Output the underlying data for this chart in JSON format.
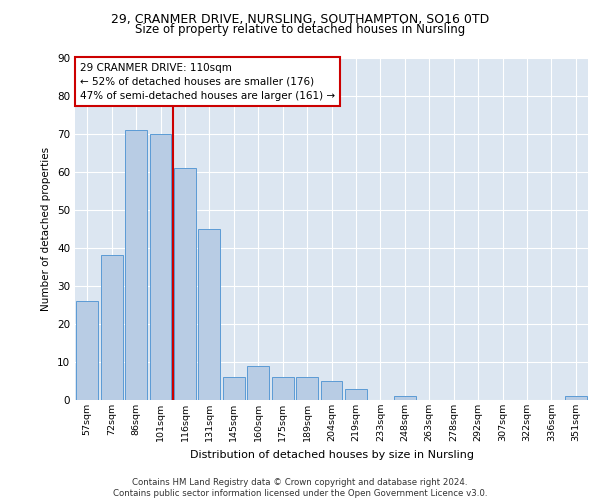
{
  "title1": "29, CRANMER DRIVE, NURSLING, SOUTHAMPTON, SO16 0TD",
  "title2": "Size of property relative to detached houses in Nursling",
  "xlabel": "Distribution of detached houses by size in Nursling",
  "ylabel": "Number of detached properties",
  "categories": [
    "57sqm",
    "72sqm",
    "86sqm",
    "101sqm",
    "116sqm",
    "131sqm",
    "145sqm",
    "160sqm",
    "175sqm",
    "189sqm",
    "204sqm",
    "219sqm",
    "233sqm",
    "248sqm",
    "263sqm",
    "278sqm",
    "292sqm",
    "307sqm",
    "322sqm",
    "336sqm",
    "351sqm"
  ],
  "values": [
    26,
    38,
    71,
    70,
    61,
    45,
    6,
    9,
    6,
    6,
    5,
    3,
    0,
    1,
    0,
    0,
    0,
    0,
    0,
    0,
    1
  ],
  "bar_color": "#b8cce4",
  "bar_edge_color": "#5b9bd5",
  "vline_color": "#cc0000",
  "annotation_text": "29 CRANMER DRIVE: 110sqm\n← 52% of detached houses are smaller (176)\n47% of semi-detached houses are larger (161) →",
  "annotation_box_color": "#ffffff",
  "annotation_box_edge": "#cc0000",
  "ylim": [
    0,
    90
  ],
  "yticks": [
    0,
    10,
    20,
    30,
    40,
    50,
    60,
    70,
    80,
    90
  ],
  "plot_bg_color": "#dce6f1",
  "footer_line1": "Contains HM Land Registry data © Crown copyright and database right 2024.",
  "footer_line2": "Contains public sector information licensed under the Open Government Licence v3.0."
}
